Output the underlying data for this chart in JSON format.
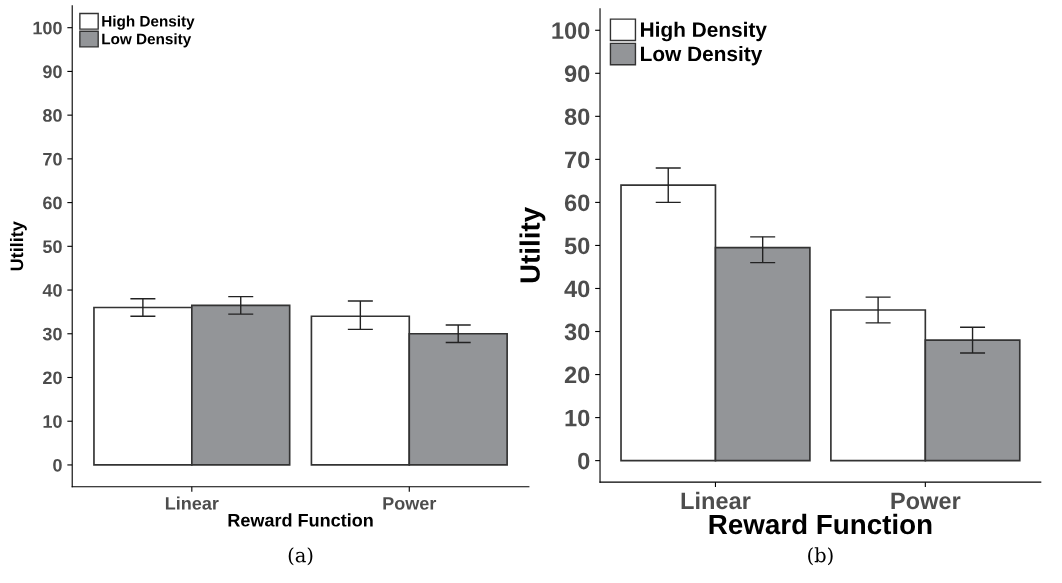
{
  "chart_data": [
    {
      "type": "bar",
      "categories": [
        "Linear",
        "Power"
      ],
      "xlabel": "Reward Function",
      "ylabel": "Utility",
      "ylim": [
        -5,
        105
      ],
      "yticks": [
        0,
        10,
        20,
        30,
        40,
        50,
        60,
        70,
        80,
        90,
        100
      ],
      "legend": "top left",
      "grid": false,
      "series": [
        {
          "name": "High Density",
          "color": "#ffffff",
          "values": [
            36,
            34
          ],
          "errors": [
            [
              34,
              38
            ],
            [
              31,
              37.5
            ]
          ]
        },
        {
          "name": "Low Density",
          "color": "#939598",
          "values": [
            36.5,
            30
          ],
          "errors": [
            [
              34.5,
              38.5
            ],
            [
              28,
              32
            ]
          ]
        }
      ],
      "annotations": [
        "(a)"
      ]
    },
    {
      "type": "bar",
      "categories": [
        "Linear",
        "Power"
      ],
      "xlabel": "Reward Function",
      "ylabel": "Utility",
      "ylim": [
        -5,
        105
      ],
      "yticks": [
        0,
        10,
        20,
        30,
        40,
        50,
        60,
        70,
        80,
        90,
        100
      ],
      "legend": "top left",
      "grid": false,
      "series": [
        {
          "name": "High Density",
          "color": "#ffffff",
          "values": [
            64,
            35
          ],
          "errors": [
            [
              60,
              68
            ],
            [
              32,
              38
            ]
          ]
        },
        {
          "name": "Low Density",
          "color": "#939598",
          "values": [
            49.5,
            28
          ],
          "errors": [
            [
              46,
              52
            ],
            [
              25,
              31
            ]
          ]
        }
      ],
      "annotations": [
        "(b)"
      ]
    }
  ]
}
